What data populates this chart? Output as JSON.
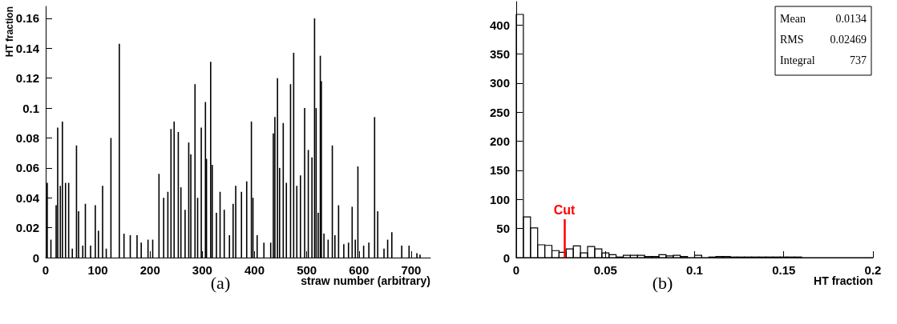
{
  "chart_data": [
    {
      "type": "bar",
      "xlabel": "straw number (arbitrary)",
      "ylabel": "HT fraction",
      "color": "#000000",
      "x": [
        3,
        10,
        20,
        23,
        28,
        32,
        38,
        44,
        51,
        59,
        63,
        71,
        76,
        86,
        95,
        101,
        109,
        116,
        125,
        141,
        150,
        162,
        175,
        183,
        196,
        205,
        217,
        226,
        234,
        240,
        246,
        254,
        259,
        267,
        274,
        278,
        286,
        291,
        298,
        306,
        308,
        316,
        319,
        327,
        334,
        342,
        352,
        359,
        364,
        375,
        385,
        394,
        397,
        405,
        418,
        431,
        436,
        439,
        444,
        448,
        455,
        461,
        469,
        475,
        481,
        488,
        496,
        503,
        510,
        515,
        518,
        522,
        526,
        528,
        533,
        541,
        549,
        554,
        561,
        571,
        580,
        587,
        593,
        598,
        609,
        619,
        630,
        636,
        648,
        655,
        663,
        682,
        696,
        711,
        717
      ],
      "values": [
        0.05,
        0.012,
        0.035,
        0.087,
        0.048,
        0.091,
        0.05,
        0.05,
        0.006,
        0.075,
        0.031,
        0.008,
        0.036,
        0.008,
        0.035,
        0.018,
        0.048,
        0.006,
        0.08,
        0.143,
        0.016,
        0.015,
        0.015,
        0.01,
        0.012,
        0.012,
        0.056,
        0.04,
        0.044,
        0.086,
        0.091,
        0.084,
        0.047,
        0.032,
        0.077,
        0.069,
        0.116,
        0.04,
        0.087,
        0.104,
        0.066,
        0.131,
        0.062,
        0.03,
        0.044,
        0.032,
        0.015,
        0.036,
        0.048,
        0.044,
        0.051,
        0.091,
        0.04,
        0.015,
        0.01,
        0.01,
        0.083,
        0.094,
        0.12,
        0.06,
        0.09,
        0.05,
        0.116,
        0.137,
        0.048,
        0.055,
        0.1,
        0.072,
        0.067,
        0.16,
        0.1,
        0.03,
        0.135,
        0.118,
        0.016,
        0.012,
        0.075,
        0.015,
        0.035,
        0.009,
        0.01,
        0.034,
        0.012,
        0.061,
        0.008,
        0.01,
        0.094,
        0.031,
        0.006,
        0.012,
        0.017,
        0.008,
        0.008,
        0.003,
        0.002
      ],
      "xlim": [
        0,
        737
      ],
      "xticks": [
        0,
        100,
        200,
        300,
        400,
        500,
        600,
        700
      ],
      "ylim": [
        0,
        0.168
      ],
      "yticks": [
        0,
        0.02,
        0.04,
        0.06,
        0.08,
        0.1,
        0.12,
        0.14,
        0.16
      ],
      "annotations": [
        "(a)"
      ]
    },
    {
      "type": "histogram",
      "xlabel": "HT fraction",
      "color": "#000000",
      "bins": [
        0,
        0.004,
        0.008,
        0.012,
        0.016,
        0.02,
        0.024,
        0.028,
        0.032,
        0.036,
        0.04,
        0.044,
        0.048,
        0.052,
        0.056,
        0.06,
        0.064,
        0.068,
        0.072,
        0.076,
        0.08,
        0.084,
        0.088,
        0.092,
        0.096,
        0.1,
        0.104,
        0.108,
        0.112,
        0.116,
        0.12,
        0.124,
        0.128,
        0.132,
        0.136,
        0.14,
        0.144,
        0.148,
        0.152,
        0.156,
        0.16,
        0.164,
        0.168,
        0.172,
        0.176,
        0.18,
        0.184,
        0.188,
        0.192,
        0.196,
        0.2
      ],
      "values": [
        418,
        70,
        51,
        22,
        21,
        12,
        9,
        15,
        20,
        8,
        19,
        15,
        8,
        5,
        1,
        4,
        4,
        4,
        2,
        2,
        5,
        3,
        4,
        2,
        0,
        4,
        0,
        1,
        2,
        2,
        1,
        1,
        1,
        1,
        1,
        1,
        1,
        1,
        1,
        1,
        0,
        0,
        0,
        0,
        0,
        0,
        0,
        0,
        0,
        0
      ],
      "xlim": [
        0,
        0.2
      ],
      "xticks": [
        0,
        0.05,
        0.1,
        0.15,
        0.2
      ],
      "ylim": [
        0,
        440
      ],
      "yticks": [
        0,
        50,
        100,
        150,
        200,
        250,
        300,
        350,
        400
      ],
      "ref_lines": [
        {
          "axis": "x",
          "value": 0.027,
          "label": "Cut",
          "color": "#ff0000"
        }
      ],
      "annotations": [
        "Mean 0.0134",
        "RMS 0.02469",
        "Integral 737",
        "(b)"
      ]
    }
  ]
}
